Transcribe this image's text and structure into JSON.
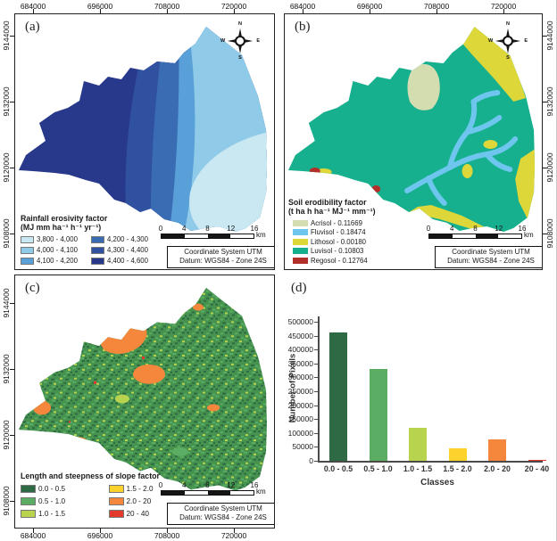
{
  "panels": {
    "a": {
      "label": "(a)",
      "axis": {
        "top": [
          "684000",
          "696000",
          "708000",
          "720000"
        ],
        "left": [
          "9144000",
          "9132000",
          "9120000",
          "9108000"
        ]
      },
      "legend": {
        "title": "Rainfall erosivity factor",
        "units": "(MJ mm ha⁻¹ h⁻¹ yr⁻¹)",
        "items": [
          {
            "label": "3,800 - 4,000",
            "color": "#c9e8f2"
          },
          {
            "label": "4,000 - 4,100",
            "color": "#8fcae8"
          },
          {
            "label": "4,100 - 4,200",
            "color": "#58a0d7"
          },
          {
            "label": "4,200 - 4,300",
            "color": "#3a6cb4"
          },
          {
            "label": "4,300 - 4,400",
            "color": "#30519f"
          },
          {
            "label": "4,400 - 4,600",
            "color": "#28388b"
          }
        ]
      },
      "scalebar": {
        "ticks": [
          "0",
          "4",
          "8",
          "12",
          "16"
        ],
        "unit": "km"
      },
      "coordinate_box": [
        "Coordinate System UTM",
        "Datum: WGS84 - Zone 24S"
      ],
      "compass": {
        "n": "N",
        "e": "E",
        "s": "S",
        "w": "W"
      }
    },
    "b": {
      "label": "(b)",
      "axis": {
        "top": [
          "684000",
          "696000",
          "708000",
          "720000"
        ],
        "right": [
          "9144000",
          "9132000",
          "9120000",
          "9108000"
        ]
      },
      "legend": {
        "title": "Soil erodibility factor",
        "units": "(t ha h ha⁻¹ MJ⁻¹ mm⁻¹)",
        "items": [
          {
            "label": "Acrisol - 0.11669",
            "color": "#d3ddb0"
          },
          {
            "label": "Fluvisol - 0.18474",
            "color": "#6ec6ee"
          },
          {
            "label": "Lithosol - 0.00180",
            "color": "#ddd73a"
          },
          {
            "label": "Luvisol - 0.10803",
            "color": "#17b08e"
          },
          {
            "label": "Regosol - 0.12764",
            "color": "#b22f2a"
          }
        ]
      },
      "scalebar": {
        "ticks": [
          "0",
          "4",
          "8",
          "12",
          "16"
        ],
        "unit": "km"
      },
      "coordinate_box": [
        "Coordinate System UTM",
        "Datum: WGS84 - Zone 24S"
      ],
      "compass": {
        "n": "N",
        "e": "E",
        "s": "S",
        "w": "W"
      }
    },
    "c": {
      "label": "(c)",
      "axis": {
        "bottom": [
          "684000",
          "696000",
          "708000",
          "720000"
        ],
        "left": [
          "9144000",
          "9132000",
          "9120000",
          "9108000"
        ]
      },
      "legend": {
        "title": "Length and steepness of slope factor",
        "items": [
          {
            "label": "0.0 - 0.5",
            "color": "#2e6b44"
          },
          {
            "label": "0.5 - 1.0",
            "color": "#5aad62"
          },
          {
            "label": "1.0 - 1.5",
            "color": "#b8d44f"
          },
          {
            "label": "1.5 - 2.0",
            "color": "#fdd22d"
          },
          {
            "label": "2.0 - 20",
            "color": "#f4873c"
          },
          {
            "label": "20 - 40",
            "color": "#e2392c"
          }
        ]
      },
      "scalebar": {
        "ticks": [
          "0",
          "4",
          "8",
          "12",
          "16"
        ],
        "unit": "km"
      },
      "coordinate_box": [
        "Coordinate System UTM",
        "Datum: WGS84 - Zone 24S"
      ]
    },
    "d": {
      "label": "(d)"
    }
  },
  "chart_data": {
    "type": "bar",
    "panel": "d",
    "categories": [
      "0.0 - 0.5",
      "0.5 - 1.0",
      "1.0 - 1.5",
      "1.5 - 2.0",
      "2.0 - 20",
      "20 - 40"
    ],
    "values": [
      460000,
      330000,
      120000,
      45000,
      78000,
      4000
    ],
    "bar_colors": [
      "#2e6b44",
      "#5aad62",
      "#b8d44f",
      "#fdd22d",
      "#f4873c",
      "#e2392c"
    ],
    "title": "",
    "xlabel": "Classes",
    "ylabel": "Number of Pixels",
    "ylim": [
      0,
      500000
    ],
    "ytick_step": 50000,
    "grid": false,
    "legend_position": "none"
  }
}
